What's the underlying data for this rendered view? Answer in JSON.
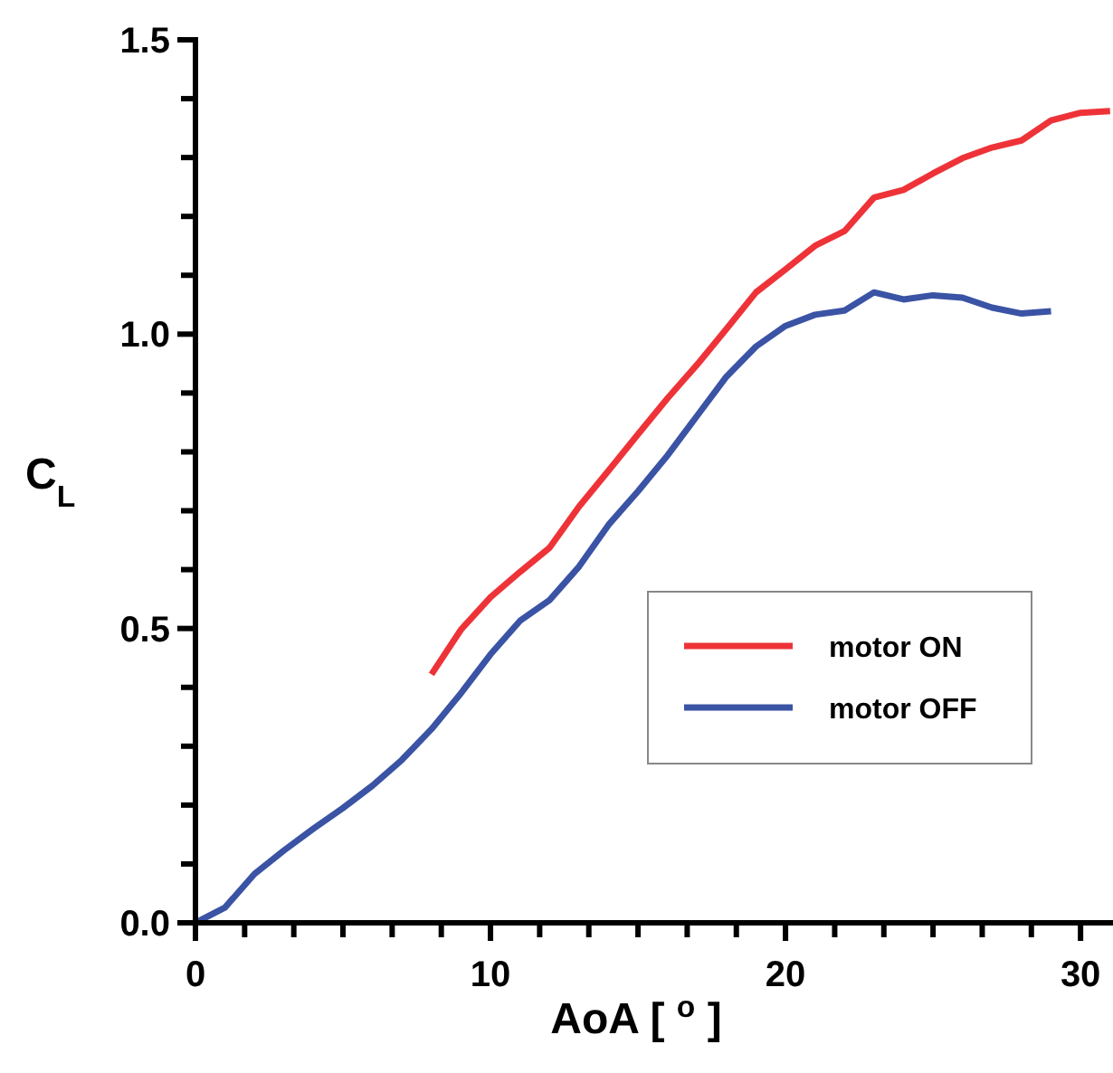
{
  "chart_data": {
    "type": "line",
    "xlabel": "AoA [ $^{o}$ ]",
    "ylabel": "C$_{L}$",
    "xlim": [
      0,
      31.1
    ],
    "ylim": [
      0,
      1.5
    ],
    "xticks": [
      0,
      {
        "value": 1.667,
        "label": null
      },
      {
        "value": 3.333,
        "label": null
      },
      {
        "value": 5,
        "label": null
      },
      {
        "value": 6.667,
        "label": null
      },
      {
        "value": 8.333,
        "label": null
      },
      10,
      {
        "value": 11.667,
        "label": null
      },
      {
        "value": 13.333,
        "label": null
      },
      {
        "value": 15,
        "label": null
      },
      {
        "value": 16.667,
        "label": null
      },
      {
        "value": 18.333,
        "label": null
      },
      20,
      {
        "value": 21.667,
        "label": null
      },
      {
        "value": 23.333,
        "label": null
      },
      {
        "value": 25,
        "label": null
      },
      {
        "value": 26.667,
        "label": null
      },
      {
        "value": 28.333,
        "label": null
      },
      30
    ],
    "yticks": [
      {
        "value": 0,
        "label": "0.0"
      },
      {
        "value": 0.1,
        "label": null
      },
      {
        "value": 0.2,
        "label": null
      },
      {
        "value": 0.3,
        "label": null
      },
      {
        "value": 0.4,
        "label": null
      },
      0.5,
      {
        "value": 0.6,
        "label": null
      },
      {
        "value": 0.7,
        "label": null
      },
      {
        "value": 0.8,
        "label": null
      },
      {
        "value": 0.9,
        "label": null
      },
      {
        "value": 1,
        "label": "1.0"
      },
      {
        "value": 1.1,
        "label": null
      },
      {
        "value": 1.2,
        "label": null
      },
      {
        "value": 1.3,
        "label": null
      },
      {
        "value": 1.4,
        "label": null
      },
      1.5
    ],
    "grid": false,
    "legend": "right",
    "marker": "none",
    "line_style": "solid",
    "series": [
      {
        "name": "motor ON",
        "color": "#ee3338",
        "x": [
          8,
          9,
          10,
          11,
          12,
          13,
          14,
          15,
          16,
          17,
          18,
          19,
          20,
          21,
          22,
          23,
          24,
          25,
          26,
          27,
          28,
          29,
          30,
          31
        ],
        "values": [
          0.422,
          0.498,
          0.553,
          0.596,
          0.637,
          0.707,
          0.768,
          0.83,
          0.891,
          0.948,
          1.009,
          1.071,
          1.11,
          1.15,
          1.175,
          1.232,
          1.245,
          1.273,
          1.299,
          1.317,
          1.329,
          1.363,
          1.376,
          1.379
        ]
      },
      {
        "name": "motor OFF",
        "color": "#3a53a4",
        "x": [
          0,
          1,
          2,
          3,
          4,
          5,
          6,
          7,
          8,
          9,
          10,
          11,
          12,
          13,
          14,
          15,
          16,
          17,
          18,
          19,
          20,
          21,
          22,
          23,
          24,
          25,
          26,
          27,
          28,
          29
        ],
        "values": [
          0,
          0.026,
          0.083,
          0.123,
          0.16,
          0.195,
          0.233,
          0.277,
          0.329,
          0.39,
          0.456,
          0.513,
          0.548,
          0.605,
          0.676,
          0.733,
          0.794,
          0.861,
          0.928,
          0.979,
          1.014,
          1.033,
          1.04,
          1.071,
          1.059,
          1.066,
          1.062,
          1.045,
          1.035,
          1.039
        ]
      }
    ]
  }
}
